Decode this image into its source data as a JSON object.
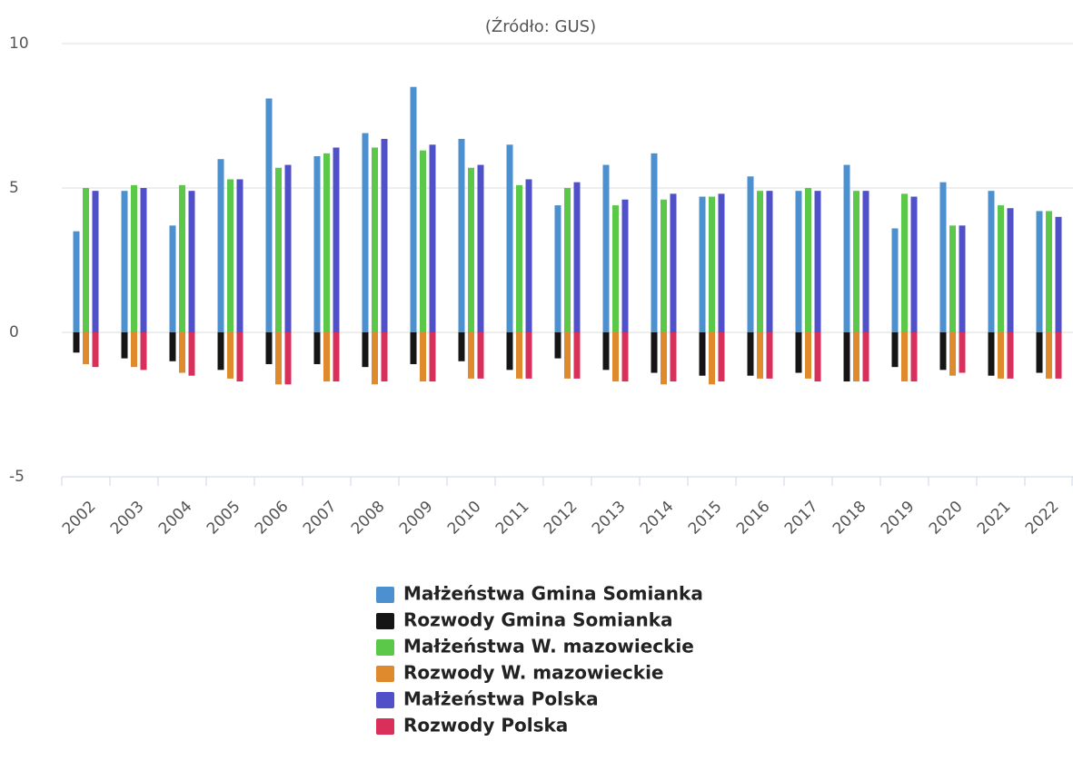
{
  "chart_data": {
    "type": "bar",
    "subtitle": "(Źródło: GUS)",
    "categories": [
      "2002",
      "2003",
      "2004",
      "2005",
      "2006",
      "2007",
      "2008",
      "2009",
      "2010",
      "2011",
      "2012",
      "2013",
      "2014",
      "2015",
      "2016",
      "2017",
      "2018",
      "2019",
      "2020",
      "2021",
      "2022"
    ],
    "series": [
      {
        "name": "Małżeństwa Gmina Somianka",
        "color": "#4d90d0",
        "values": [
          3.5,
          4.9,
          3.7,
          6.0,
          8.1,
          6.1,
          6.9,
          8.5,
          6.7,
          6.5,
          4.4,
          5.8,
          6.2,
          4.7,
          5.4,
          4.9,
          5.8,
          3.6,
          5.2,
          4.9,
          4.2
        ]
      },
      {
        "name": "Rozwody Gmina Somianka",
        "color": "#151515",
        "values": [
          -0.7,
          -0.9,
          -1.0,
          -1.3,
          -1.1,
          -1.1,
          -1.2,
          -1.1,
          -1.0,
          -1.3,
          -0.9,
          -1.3,
          -1.4,
          -1.5,
          -1.5,
          -1.4,
          -1.7,
          -1.2,
          -1.3,
          -1.5,
          -1.4
        ]
      },
      {
        "name": "Małżeństwa W. mazowieckie",
        "color": "#5bc84a",
        "values": [
          5.0,
          5.1,
          5.1,
          5.3,
          5.7,
          6.2,
          6.4,
          6.3,
          5.7,
          5.1,
          5.0,
          4.4,
          4.6,
          4.7,
          4.9,
          5.0,
          4.9,
          4.8,
          3.7,
          4.4,
          4.2
        ]
      },
      {
        "name": "Rozwody W. mazowieckie",
        "color": "#e08a2e",
        "values": [
          -1.1,
          -1.2,
          -1.4,
          -1.6,
          -1.8,
          -1.7,
          -1.8,
          -1.7,
          -1.6,
          -1.6,
          -1.6,
          -1.7,
          -1.8,
          -1.8,
          -1.6,
          -1.6,
          -1.7,
          -1.7,
          -1.5,
          -1.6,
          -1.6
        ]
      },
      {
        "name": "Małżeństwa Polska",
        "color": "#5050c8",
        "values": [
          4.9,
          5.0,
          4.9,
          5.3,
          5.8,
          6.4,
          6.7,
          6.5,
          5.8,
          5.3,
          5.2,
          4.6,
          4.8,
          4.8,
          4.9,
          4.9,
          4.9,
          4.7,
          3.7,
          4.3,
          4.0
        ]
      },
      {
        "name": "Rozwody Polska",
        "color": "#d8305a",
        "values": [
          -1.2,
          -1.3,
          -1.5,
          -1.7,
          -1.8,
          -1.7,
          -1.7,
          -1.7,
          -1.6,
          -1.6,
          -1.6,
          -1.7,
          -1.7,
          -1.7,
          -1.6,
          -1.7,
          -1.7,
          -1.7,
          -1.4,
          -1.6,
          -1.6
        ]
      }
    ],
    "ylim": [
      -5,
      10
    ],
    "yticks": [
      -5,
      0,
      5,
      10
    ],
    "grid": true,
    "legend": "bottom"
  }
}
